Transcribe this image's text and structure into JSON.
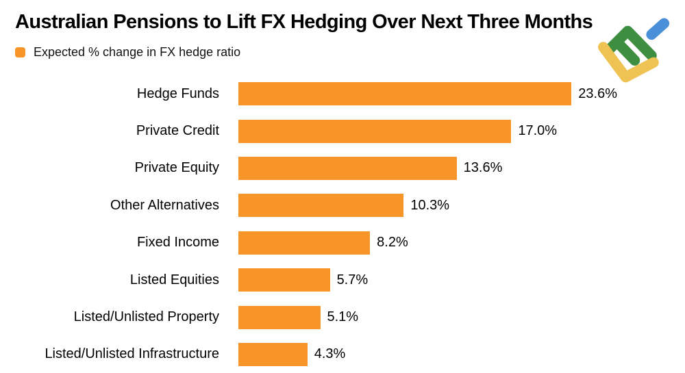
{
  "header": {
    "title": "Australian Pensions to Lift FX Hedging Over Next Three Months",
    "legend_label": "Expected % change in FX hedge ratio"
  },
  "colors": {
    "bar": "#F79528",
    "text": "#000000",
    "background": "#FFFFFF",
    "logo_green": "#3E8E41",
    "logo_yellow": "#EEC353",
    "logo_blue": "#4A90D9"
  },
  "logo": {
    "name": "litefinance-logo"
  },
  "chart_data": {
    "type": "bar",
    "orientation": "horizontal",
    "title": "Australian Pensions to Lift FX Hedging Over Next Three Months",
    "legend": [
      "Expected % change in FX hedge ratio"
    ],
    "legend_position": "top-left",
    "categories": [
      "Hedge Funds",
      "Private Credit",
      "Private Equity",
      "Other Alternatives",
      "Fixed Income",
      "Listed Equities",
      "Listed/Unlisted Property",
      "Listed/Unlisted Infrastructure"
    ],
    "values": [
      23.6,
      17.0,
      13.6,
      10.3,
      8.2,
      5.7,
      5.1,
      4.3
    ],
    "value_labels": [
      "23.6%",
      "17.0%",
      "13.6%",
      "10.3%",
      "8.2%",
      "5.7%",
      "5.1%",
      "4.3%"
    ],
    "xlabel": "",
    "ylabel": "",
    "xlim": [
      0,
      23.6
    ],
    "grid": false,
    "data_labels": "outside-end"
  }
}
